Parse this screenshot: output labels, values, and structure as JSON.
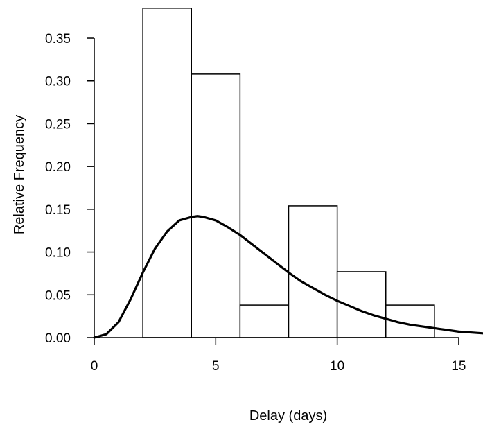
{
  "chart_data": {
    "type": "bar",
    "title": "",
    "xlabel": "Delay (days)",
    "ylabel": "Relative Frequency",
    "xlim": [
      0,
      16
    ],
    "ylim": [
      0,
      0.38
    ],
    "xticks": [
      0,
      5,
      10,
      15
    ],
    "xtick_labels": [
      "0",
      "5",
      "10",
      "15"
    ],
    "yticks": [
      0,
      0.05,
      0.1,
      0.15,
      0.2,
      0.25,
      0.3,
      0.35
    ],
    "ytick_labels": [
      "0.00",
      "0.05",
      "0.10",
      "0.15",
      "0.20",
      "0.25",
      "0.30",
      "0.35"
    ],
    "grid": false,
    "bins": [
      {
        "x0": 2,
        "x1": 4,
        "value": 0.385
      },
      {
        "x0": 4,
        "x1": 6,
        "value": 0.308
      },
      {
        "x0": 6,
        "x1": 8,
        "value": 0.038
      },
      {
        "x0": 8,
        "x1": 10,
        "value": 0.154
      },
      {
        "x0": 10,
        "x1": 12,
        "value": 0.077
      },
      {
        "x0": 12,
        "x1": 14,
        "value": 0.038
      }
    ],
    "curve": {
      "type": "line",
      "x": [
        0,
        0.5,
        1,
        1.5,
        2,
        2.5,
        3,
        3.5,
        4,
        4.25,
        4.5,
        5,
        5.5,
        6,
        6.5,
        7,
        7.5,
        8,
        8.5,
        9,
        9.5,
        10,
        10.5,
        11,
        11.5,
        12,
        12.5,
        13,
        13.5,
        14,
        14.5,
        15,
        15.5,
        16
      ],
      "y": [
        0,
        0.004,
        0.018,
        0.045,
        0.076,
        0.104,
        0.124,
        0.137,
        0.141,
        0.142,
        0.141,
        0.137,
        0.129,
        0.12,
        0.109,
        0.098,
        0.087,
        0.076,
        0.066,
        0.058,
        0.05,
        0.043,
        0.037,
        0.031,
        0.026,
        0.022,
        0.018,
        0.015,
        0.013,
        0.011,
        0.009,
        0.007,
        0.006,
        0.005
      ]
    }
  }
}
